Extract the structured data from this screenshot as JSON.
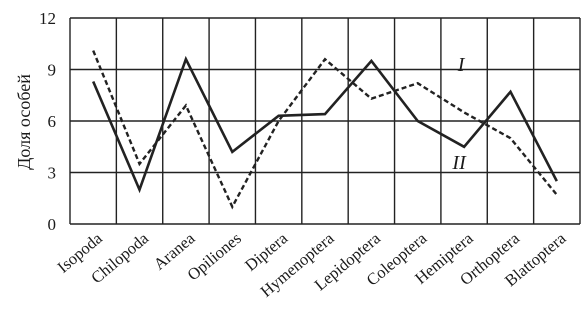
{
  "chart_data": {
    "type": "line",
    "ylabel": "Доля особей",
    "xlabel": "",
    "ylim": [
      0,
      12
    ],
    "yticks": [
      "0",
      "3",
      "6",
      "9",
      "12"
    ],
    "grid": true,
    "categories": [
      "Isopoda",
      "Chilopoda",
      "Aranea",
      "Opiliones",
      "Diptera",
      "Hymenoptera",
      "Lepidoptera",
      "Coleoptera",
      "Hemiptera",
      "Orthoptera",
      "Blattoptera"
    ],
    "series": [
      {
        "name": "I",
        "style": "dashed",
        "color": "#222222",
        "values": [
          10.1,
          3.5,
          6.9,
          1.0,
          6.0,
          9.6,
          7.3,
          8.2,
          6.5,
          5.0,
          1.7
        ]
      },
      {
        "name": "II",
        "style": "solid",
        "color": "#222222",
        "values": [
          8.3,
          2.0,
          9.6,
          4.2,
          6.3,
          6.4,
          9.5,
          6.0,
          4.5,
          7.7,
          2.5
        ]
      }
    ]
  }
}
